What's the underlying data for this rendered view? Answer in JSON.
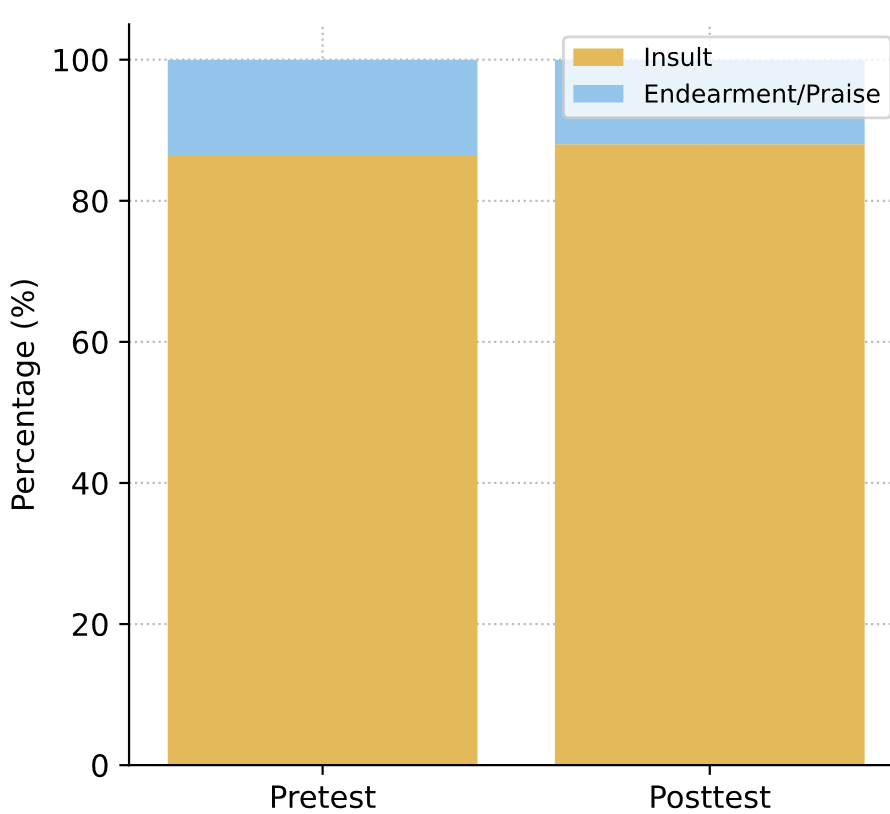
{
  "chart_data": {
    "type": "bar",
    "stacked": true,
    "ylabel": "Percentage (%)",
    "categories": [
      "Pretest",
      "Posttest"
    ],
    "series": [
      {
        "name": "Insult",
        "color": "#e3b95a",
        "values": [
          86.5,
          88
        ]
      },
      {
        "name": "Endearment/Praise",
        "color": "#93c5ea",
        "values": [
          13.5,
          12
        ]
      }
    ],
    "ylim": [
      0,
      105
    ],
    "yticks": [
      0,
      20,
      40,
      60,
      80,
      100
    ],
    "grid": true,
    "legend": "top right"
  }
}
